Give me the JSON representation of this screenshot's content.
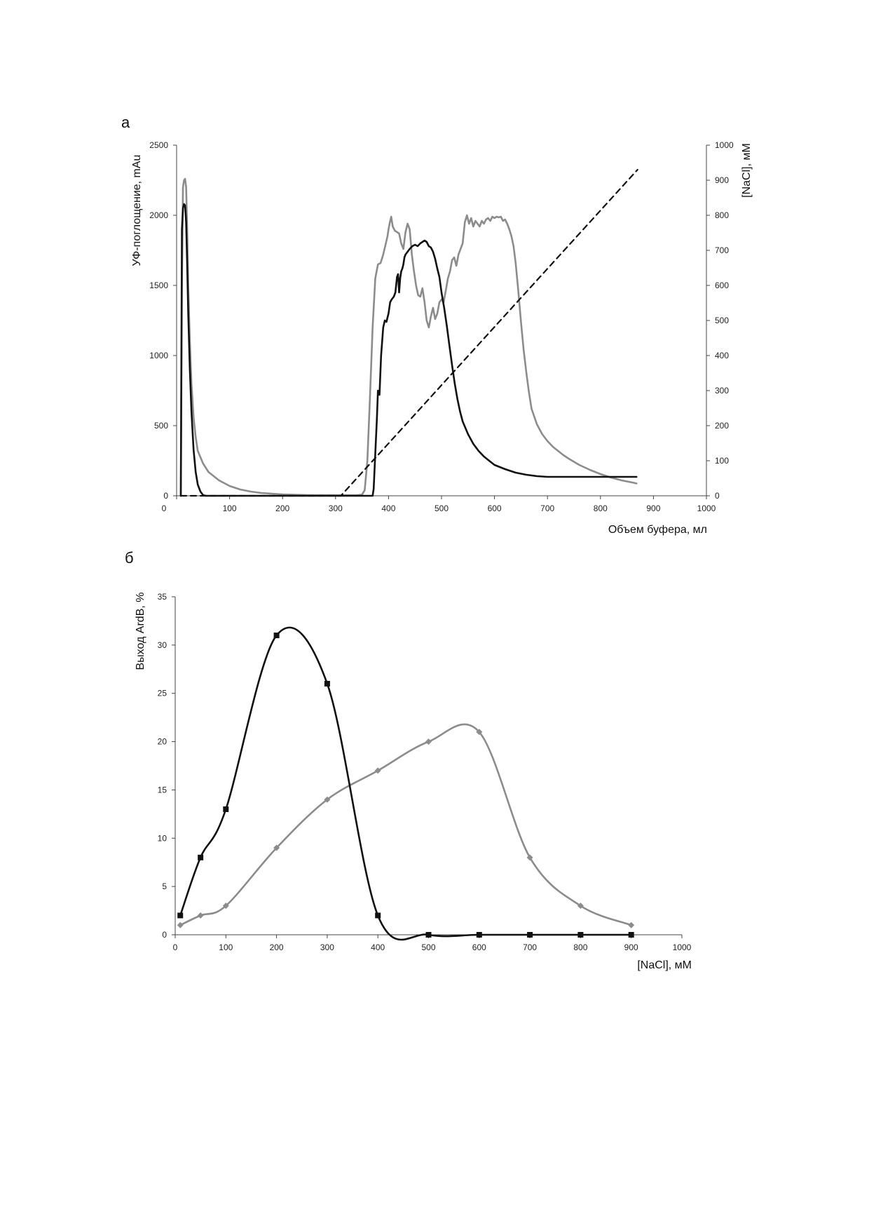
{
  "chart_data": [
    {
      "panel": "а",
      "type": "line",
      "xlabel": "Объем буфера, мл",
      "ylabel": "УФ-поглощение, mAu",
      "y2label": "[NaCl], мМ",
      "xlim": [
        0,
        1000
      ],
      "ylim": [
        0,
        2500
      ],
      "y2lim": [
        0,
        1000
      ],
      "x_ticks": [
        0,
        100,
        200,
        300,
        400,
        500,
        600,
        700,
        800,
        900,
        1000
      ],
      "y_ticks": [
        0,
        500,
        1000,
        1500,
        2000,
        2500
      ],
      "y2_ticks": [
        0,
        100,
        200,
        300,
        400,
        500,
        600,
        700,
        800,
        900,
        1000
      ],
      "grid": false,
      "series": [
        {
          "style": "solid",
          "color": "#8c8c8c",
          "axis": "left",
          "x": [
            8,
            10,
            12,
            14,
            16,
            18,
            20,
            22,
            25,
            28,
            32,
            36,
            40,
            50,
            60,
            80,
            100,
            120,
            140,
            160,
            200,
            250,
            300,
            340,
            350,
            355,
            360,
            365,
            370,
            375,
            380,
            385,
            390,
            395,
            398,
            400,
            402,
            405,
            408,
            412,
            416,
            420,
            424,
            428,
            432,
            436,
            440,
            444,
            448,
            452,
            456,
            460,
            464,
            468,
            472,
            476,
            480,
            484,
            488,
            492,
            496,
            500,
            504,
            508,
            512,
            516,
            520,
            524,
            528,
            532,
            536,
            540,
            544,
            548,
            552,
            556,
            560,
            564,
            568,
            572,
            576,
            580,
            584,
            588,
            592,
            596,
            600,
            604,
            608,
            612,
            616,
            620,
            624,
            628,
            632,
            636,
            640,
            645,
            650,
            655,
            660,
            665,
            670,
            680,
            690,
            700,
            710,
            720,
            730,
            740,
            760,
            780,
            800,
            820,
            840,
            860,
            868
          ],
          "y": [
            0,
            1500,
            2200,
            2250,
            2260,
            2200,
            1900,
            1500,
            1100,
            800,
            560,
            420,
            320,
            230,
            170,
            110,
            70,
            45,
            30,
            20,
            10,
            5,
            4,
            4,
            8,
            40,
            250,
            700,
            1200,
            1550,
            1650,
            1660,
            1720,
            1800,
            1850,
            1900,
            1940,
            1990,
            1920,
            1890,
            1880,
            1870,
            1800,
            1760,
            1880,
            1940,
            1900,
            1720,
            1600,
            1500,
            1430,
            1420,
            1480,
            1380,
            1250,
            1200,
            1280,
            1340,
            1260,
            1300,
            1380,
            1400,
            1380,
            1460,
            1550,
            1600,
            1680,
            1700,
            1640,
            1720,
            1760,
            1800,
            1950,
            2000,
            1940,
            1980,
            1920,
            1960,
            1940,
            1920,
            1960,
            1940,
            1970,
            1980,
            1960,
            1990,
            1980,
            1990,
            1985,
            1990,
            1960,
            1970,
            1940,
            1900,
            1850,
            1780,
            1660,
            1460,
            1240,
            1040,
            880,
            740,
            620,
            510,
            440,
            390,
            350,
            320,
            290,
            265,
            220,
            185,
            155,
            130,
            110,
            95,
            88
          ]
        },
        {
          "style": "solid",
          "color": "#111111",
          "axis": "left",
          "x": [
            8,
            10,
            12,
            14,
            16,
            18,
            20,
            22,
            25,
            28,
            32,
            36,
            40,
            45,
            50,
            55,
            60,
            100,
            200,
            300,
            360,
            370,
            372,
            375,
            378,
            380,
            383,
            386,
            390,
            393,
            396,
            400,
            403,
            406,
            410,
            413,
            416,
            418,
            420,
            422,
            424,
            426,
            428,
            430,
            432,
            436,
            440,
            445,
            450,
            455,
            460,
            464,
            468,
            472,
            476,
            480,
            484,
            488,
            492,
            496,
            500,
            505,
            510,
            515,
            520,
            525,
            530,
            535,
            540,
            550,
            560,
            570,
            580,
            590,
            600,
            620,
            640,
            660,
            680,
            700,
            720,
            760,
            800,
            840,
            868
          ],
          "y": [
            0,
            1900,
            2050,
            2080,
            2070,
            1950,
            1650,
            1300,
            900,
            600,
            330,
            170,
            80,
            30,
            5,
            0,
            0,
            0,
            0,
            0,
            0,
            0,
            50,
            300,
            550,
            750,
            720,
            1000,
            1200,
            1250,
            1240,
            1300,
            1380,
            1400,
            1420,
            1450,
            1560,
            1580,
            1450,
            1550,
            1600,
            1620,
            1650,
            1700,
            1720,
            1740,
            1760,
            1780,
            1790,
            1780,
            1800,
            1810,
            1820,
            1810,
            1780,
            1770,
            1740,
            1690,
            1620,
            1560,
            1450,
            1340,
            1210,
            1070,
            930,
            800,
            690,
            600,
            530,
            440,
            370,
            320,
            280,
            250,
            220,
            190,
            165,
            150,
            140,
            135,
            135,
            135,
            135,
            135,
            135
          ]
        },
        {
          "style": "dashed",
          "color": "#111111",
          "axis": "right",
          "x": [
            8,
            310,
            870
          ],
          "y": [
            0,
            0,
            930
          ]
        }
      ]
    },
    {
      "panel": "б",
      "type": "line",
      "xlabel": "[NaCl], мМ",
      "ylabel": "Выход ArdB, %",
      "xlim": [
        0,
        1000
      ],
      "ylim": [
        0,
        35
      ],
      "x_ticks": [
        0,
        100,
        200,
        300,
        400,
        500,
        600,
        700,
        800,
        900,
        1000
      ],
      "y_ticks": [
        0,
        5,
        10,
        15,
        20,
        25,
        30,
        35
      ],
      "grid": false,
      "series": [
        {
          "marker": "square",
          "color": "#111111",
          "x": [
            10,
            50,
            100,
            200,
            300,
            400,
            500,
            600,
            700,
            800,
            900
          ],
          "y": [
            2,
            8,
            13,
            31,
            26,
            2,
            0,
            0,
            0,
            0,
            0
          ]
        },
        {
          "marker": "diamond",
          "color": "#8c8c8c",
          "x": [
            10,
            50,
            100,
            200,
            300,
            400,
            500,
            600,
            700,
            800,
            900
          ],
          "y": [
            1,
            2,
            3,
            9,
            14,
            17,
            20,
            21,
            8,
            3,
            1
          ]
        }
      ]
    }
  ]
}
